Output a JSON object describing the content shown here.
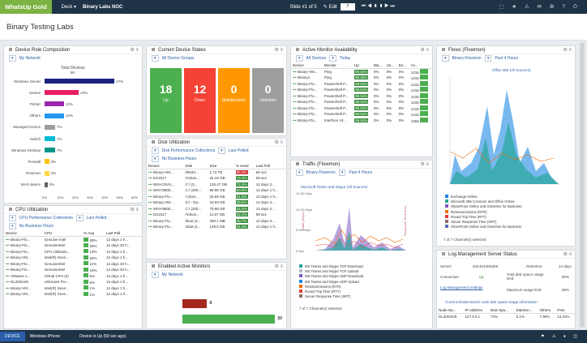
{
  "app": {
    "logo": "WhatsUp Gold",
    "deck_label": "Deck ▾",
    "deck_name": "Binary Labs NOC",
    "slide_info": "Slide #1 of 5",
    "edit_label": "✎ Edit",
    "slide_input": "7"
  },
  "page": {
    "title": "Binary Testing Labs"
  },
  "device_role": {
    "title": "Device Role Composition",
    "filter": "My Network",
    "chart_title": "Total Devices",
    "chart_total": "90",
    "chart_data": {
      "type": "bar",
      "categories": [
        "Windows Server",
        "Device",
        "Printer",
        "Others",
        "Managed Device",
        "Switch",
        "Windows Desktop",
        "Firewall",
        "Flowmon",
        "WAS device"
      ],
      "values": [
        47,
        23,
        13,
        13,
        7,
        7,
        7,
        3,
        3,
        2
      ],
      "value_labels": [
        "47%",
        "23%",
        "13%",
        "13%",
        "7%",
        "7%",
        "7%",
        "3%",
        "3%",
        "2%"
      ],
      "ticks": [
        "0%",
        "10%",
        "20%",
        "30%",
        "40%",
        "50%",
        "60%"
      ],
      "colors": [
        "#1a237e",
        "#e91e63",
        "#9c27b0",
        "#2196f3",
        "#9e9e9e",
        "#00bcd4",
        "#009688",
        "#ffc107",
        "#ffd740",
        "#616161"
      ]
    }
  },
  "cpu": {
    "title": "CPU Utilization",
    "collection": "CPU Performance Collections",
    "last_polled": "Last Polled",
    "range": "No Business Hours",
    "cols": [
      "Device",
      "CPU",
      "% Avg",
      "Last Poll"
    ],
    "rows": [
      [
        "Binary-Flo...",
        "Genuine Intel",
        "28%",
        "12 days 1 h..."
      ],
      [
        "Binary-Flo...",
        "GenuineIntel",
        "26%",
        "12 days 20 h..."
      ],
      [
        "Binary-Flo...",
        "CPU Utilizatio...",
        "13%",
        "12 days 1 h..."
      ],
      [
        "Binary-VM...",
        "Intel(R) Xeon...",
        "20%",
        "12 days 1 h..."
      ],
      [
        "Binary-Flo...",
        "GenuineIntel",
        "11%",
        "12 days 20 h..."
      ],
      [
        "Binary-Flo...",
        "GenuineIntel",
        "10%",
        "12 days 20 h..."
      ],
      [
        "VMware v...",
        "Virtual CPU (0)",
        "5%",
        "12 days 1 h..."
      ],
      [
        "DL20Gen9",
        "Unknown Pro...",
        "5%",
        "12 days 1 h..."
      ],
      [
        "Binary-VM...",
        "Intel(R) Xeon...",
        "1%",
        "12 days 1 h..."
      ],
      [
        "Binary-VM...",
        "Intel(R) Xeon...",
        "1%",
        "12 days 1 h..."
      ]
    ]
  },
  "device_states": {
    "title": "Current Device States",
    "filter": "All Device Groups",
    "tiles": [
      {
        "n": "18",
        "t": "Up",
        "c": "#4caf50"
      },
      {
        "n": "12",
        "t": "Down",
        "c": "#f44336"
      },
      {
        "n": "0",
        "t": "Maintenance",
        "c": "#ff9800"
      },
      {
        "n": "0",
        "t": "Unknown",
        "c": "#9e9e9e"
      }
    ]
  },
  "disk": {
    "title": "Disk Utilization",
    "collection": "Disk Performance Collections",
    "last_polled": "Last Polled",
    "range": "No Business Hours",
    "cols": [
      "Device",
      "Disk",
      "Size",
      "% Used",
      "Last Poll"
    ],
    "rows": [
      [
        "Binary-VM...",
        "08040...",
        "2.73 TB",
        "95.3%",
        "59 sec"
      ],
      [
        "DS1517",
        "/Volum...",
        "25.44 GB",
        "74.1%",
        "59 sec"
      ],
      [
        "WIN-C5VU...",
        "C:\\ (3...",
        "126.47 GB",
        "72.2%",
        "12 days 2..."
      ],
      [
        "WIN-05EB...",
        "C:\\ (200...",
        "98.99 GB",
        "63.6%",
        "12 days 1 h..."
      ],
      [
        "Binary-Flo...",
        "/ (Size...",
        "25.69 GB",
        "61.6%",
        "12 days 1 h..."
      ],
      [
        "Binary-VM...",
        "D:\\ - Da...",
        "16.93 GB",
        "49.5%",
        "12 days 2..."
      ],
      [
        "WIN-05EB...",
        "C:\\ (200...",
        "79.68 GB",
        "44.2%",
        "12 days 2..."
      ],
      [
        "DS1517",
        "/Volum...",
        "11.67 GB",
        "42.2%",
        "59 sec"
      ],
      [
        "Binary-Flo...",
        "/boot (2...",
        "250.1 MB",
        "38.7%",
        "12 days 2..."
      ],
      [
        "Binary-Flo...",
        "/data (1...",
        "148.5 GB",
        "31.3%",
        "12 days 1 h..."
      ]
    ]
  },
  "active_monitors": {
    "title": "Enabled Active Monitors",
    "filter": "My Network",
    "values": [
      8,
      30
    ],
    "colors": [
      "#a5281f",
      "#4caf50"
    ]
  },
  "availability": {
    "title": "Active Monitor Availability",
    "filter": "All Devices",
    "range": "Today",
    "cols": [
      "Device",
      "Monitor",
      "Up",
      "Ma...",
      "Un...",
      "Do...",
      "Av..."
    ],
    "rows": [
      [
        "Binary-VM...",
        "Ping",
        "98.54%",
        "0%",
        "0%",
        "0%",
        "1416"
      ],
      [
        "Binary1",
        "Ping",
        "98.66%",
        "0%",
        "0%",
        "0%",
        "1416"
      ],
      [
        "Binary-Flo...",
        "Powershell P...",
        "98.54%",
        "0%",
        "0%",
        "0%",
        "1416"
      ],
      [
        "Binary-Flo...",
        "Powershell P...",
        "98.54%",
        "0%",
        "0%",
        "0%",
        "1416"
      ],
      [
        "Binary-Flo...",
        "Powershell P...",
        "98.54%",
        "0%",
        "0%",
        "0%",
        "1416"
      ],
      [
        "Binary-Flo...",
        "Powershell P...",
        "98.54%",
        "0%",
        "0%",
        "0%",
        "1416"
      ],
      [
        "Binary-Flo...",
        "Powershell P...",
        "98.54%",
        "0%",
        "0%",
        "0%",
        "1416"
      ],
      [
        "Binary-Flo...",
        "Powershell P...",
        "98.54%",
        "0%",
        "0%",
        "0%",
        "1416"
      ],
      [
        "Binary-Flo...",
        "Interface Ut...",
        "98.54%",
        "0%",
        "0%",
        "0%",
        "1355"
      ]
    ]
  },
  "traffic": {
    "title": "Traffic (Flowmon)",
    "source": "Binary-Flowmon",
    "range": "Past 4 Hours",
    "chart_title": "Microsoft Teams and Skype (All Sources)",
    "y_top": "12.00 Kbps",
    "y_mid": "10.00 Kbps",
    "y_low": "5.00 Kbps",
    "y_bot": "0 bps",
    "y_left_label": "Traffic (Kbps)",
    "y_right_label": "Response Time (ms)",
    "legend": [
      "MS Teams and Skype TCP Download",
      "MS Teams and Skype TCP Upload",
      "MS Teams and Skype UDP Download",
      "MS Teams and Skype UDP Upload",
      "Retransmissions (RTR)",
      "Round Trip Time (RTT)",
      "Server Response Time (SRT)"
    ],
    "channels": "7 of 7 Channel(s) selected"
  },
  "flows": {
    "title": "Flows (Flowmon)",
    "source": "Binary-Flowmon",
    "range": "Past 4 Hours",
    "chart_title": "Office 365 (All Sources)",
    "legend": [
      "Exchange Online",
      "Microsoft 365 Common and Office Online",
      "SharePoint Online and OneDrive for Business",
      "Retransmissions (RTR)",
      "Round Trip Time (RTT)",
      "Server Response Time (SRT)",
      "SharePoint Online and OneDrive for Business"
    ],
    "channels": "7 of 7 Channel(s) selected"
  },
  "log_mgmt": {
    "title": "Log Management Server Status",
    "server_label": "Server:",
    "server": "s0C4010D5300",
    "retention_label": "Retention:",
    "retention": "14 days",
    "connection_label": "Connection:",
    "connection": "Up",
    "disk_label": "Total disk space usage limit:",
    "disk": "50%",
    "settings_link": "Log Management Settings",
    "max_label": "Maximum usage limit:",
    "max": "55%",
    "index_info": "Current Elasticsearch node disk space usage information",
    "cols": [
      "Node Na...",
      "IP Address",
      "Disk Spa...",
      "Elastice...",
      "Others",
      "Free"
    ],
    "row": [
      "DL20G9V8",
      "127.0.0.1",
      "72%",
      "0.1%",
      "7.99%",
      "13.22%"
    ]
  },
  "bottom": {
    "device": "DEVICE",
    "device_name": "Windows-iPhone",
    "event": "Device is Up (59 sec ago)"
  }
}
